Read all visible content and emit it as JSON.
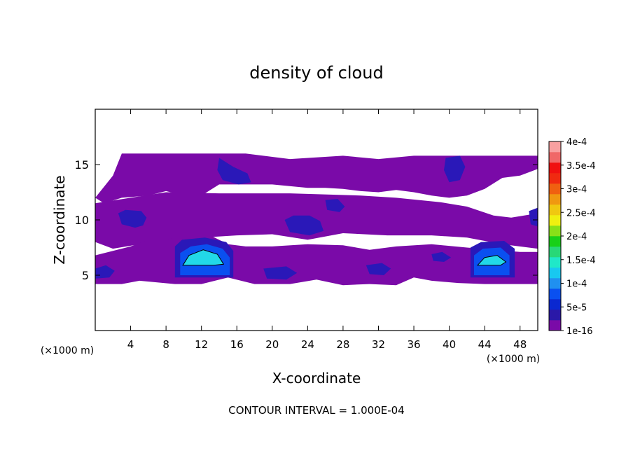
{
  "chart_data": {
    "type": "heatmap",
    "title": "density of cloud",
    "xlabel": "X-coordinate",
    "ylabel": "Z-coordinate",
    "x_unit": "(×1000 m)",
    "y_unit": "(×1000 m)",
    "footer": "CONTOUR INTERVAL = 1.000E-04",
    "xlim": [
      0,
      50
    ],
    "ylim": [
      0,
      20
    ],
    "x_ticks": [
      "4",
      "8",
      "12",
      "16",
      "20",
      "24",
      "28",
      "32",
      "36",
      "40",
      "44",
      "48"
    ],
    "x_tick_values": [
      4,
      8,
      12,
      16,
      20,
      24,
      28,
      32,
      36,
      40,
      44,
      48
    ],
    "y_ticks": [
      "5",
      "10",
      "15"
    ],
    "y_tick_values": [
      5,
      10,
      15
    ],
    "colorbar": {
      "labels": [
        "1e-16",
        "5e-5",
        "1e-4",
        "1.5e-4",
        "2e-4",
        "2.5e-4",
        "3e-4",
        "3.5e-4",
        "4e-4"
      ],
      "label_values": [
        1e-16,
        5e-05,
        0.0001,
        0.00015,
        0.0002,
        0.00025,
        0.0003,
        0.00035,
        0.0004
      ],
      "colors": [
        "#7a0aa8",
        "#2a18a8",
        "#0a28d0",
        "#0a50f0",
        "#2090f0",
        "#18c8f0",
        "#20e8c8",
        "#28d878",
        "#18d018",
        "#88e018",
        "#f0f010",
        "#f0c810",
        "#f09810",
        "#f06010",
        "#f02a10",
        "#f01010",
        "#f06868",
        "#f8a0a0"
      ]
    },
    "regions": [
      {
        "level": 1e-16,
        "polygon": [
          [
            0,
            12
          ],
          [
            2,
            14
          ],
          [
            3,
            16
          ],
          [
            17,
            16
          ],
          [
            22,
            15.5
          ],
          [
            28,
            15.8
          ],
          [
            32,
            15.5
          ],
          [
            36,
            15.8
          ],
          [
            44,
            15.8
          ],
          [
            50,
            15.8
          ],
          [
            50,
            14.6
          ],
          [
            48,
            14
          ],
          [
            46,
            13.8
          ],
          [
            44,
            12.8
          ],
          [
            42,
            12.2
          ],
          [
            40,
            12
          ],
          [
            38,
            12.2
          ],
          [
            36,
            12.5
          ],
          [
            34,
            12.7
          ],
          [
            32,
            12.5
          ],
          [
            30,
            12.6
          ],
          [
            28,
            12.8
          ],
          [
            26,
            12.9
          ],
          [
            24,
            12.9
          ],
          [
            20,
            13.2
          ],
          [
            14,
            13.2
          ],
          [
            12,
            12.2
          ],
          [
            10,
            12.2
          ],
          [
            8,
            12.6
          ],
          [
            6,
            12.2
          ],
          [
            3,
            12
          ],
          [
            1,
            11.5
          ]
        ]
      },
      {
        "level": 1e-16,
        "polygon": [
          [
            0,
            11.5
          ],
          [
            4,
            12
          ],
          [
            8,
            12.5
          ],
          [
            14,
            12.4
          ],
          [
            22,
            12.4
          ],
          [
            30,
            12.2
          ],
          [
            34,
            12
          ],
          [
            39,
            11.6
          ],
          [
            42,
            11.2
          ],
          [
            45,
            10.4
          ],
          [
            47,
            10.2
          ],
          [
            50,
            10.6
          ],
          [
            50,
            7.4
          ],
          [
            46,
            7.8
          ],
          [
            42,
            8.4
          ],
          [
            38,
            8.6
          ],
          [
            33,
            8.6
          ],
          [
            28,
            8.8
          ],
          [
            24,
            8.2
          ],
          [
            20,
            8.7
          ],
          [
            16,
            8.6
          ],
          [
            12,
            8.4
          ],
          [
            8,
            7.4
          ],
          [
            5,
            7.8
          ],
          [
            2,
            7.4
          ],
          [
            0,
            8
          ]
        ]
      },
      {
        "level": 1e-16,
        "polygon": [
          [
            0,
            6.8
          ],
          [
            2,
            7.2
          ],
          [
            4,
            7.6
          ],
          [
            6,
            8.2
          ],
          [
            8,
            8.2
          ],
          [
            10,
            8.6
          ],
          [
            13,
            8.6
          ],
          [
            15,
            7.8
          ],
          [
            17,
            7.6
          ],
          [
            20,
            7.6
          ],
          [
            24,
            7.8
          ],
          [
            28,
            7.7
          ],
          [
            31,
            7.3
          ],
          [
            34,
            7.6
          ],
          [
            38,
            7.8
          ],
          [
            42,
            7.5
          ],
          [
            45,
            7.3
          ],
          [
            48,
            7.1
          ],
          [
            50,
            7.1
          ],
          [
            50,
            4.2
          ],
          [
            47,
            4.2
          ],
          [
            44,
            4.2
          ],
          [
            41,
            4.3
          ],
          [
            38,
            4.5
          ],
          [
            36,
            4.8
          ],
          [
            34,
            4.1
          ],
          [
            31,
            4.2
          ],
          [
            28,
            4.1
          ],
          [
            25,
            4.6
          ],
          [
            22,
            4.2
          ],
          [
            18,
            4.2
          ],
          [
            15,
            4.8
          ],
          [
            12,
            4.2
          ],
          [
            9,
            4.2
          ],
          [
            5,
            4.5
          ],
          [
            3,
            4.2
          ],
          [
            0,
            4.2
          ]
        ]
      },
      {
        "level": 5e-05,
        "polygon": [
          [
            14,
            15.6
          ],
          [
            15.6,
            14.8
          ],
          [
            17.2,
            14.2
          ],
          [
            17.6,
            13.4
          ],
          [
            16.2,
            13.2
          ],
          [
            14.4,
            13.6
          ],
          [
            13.8,
            14.5
          ]
        ]
      },
      {
        "level": 5e-05,
        "polygon": [
          [
            39.6,
            15.6
          ],
          [
            41.2,
            15.8
          ],
          [
            41.8,
            14.8
          ],
          [
            41.2,
            13.6
          ],
          [
            40,
            13.4
          ],
          [
            39.4,
            14.5
          ]
        ]
      },
      {
        "level": 5e-05,
        "polygon": [
          [
            2.6,
            10.6
          ],
          [
            3.4,
            10.9
          ],
          [
            5.2,
            10.8
          ],
          [
            5.8,
            10.2
          ],
          [
            5.4,
            9.5
          ],
          [
            4.5,
            9.3
          ],
          [
            3,
            9.6
          ]
        ]
      },
      {
        "level": 5e-05,
        "polygon": [
          [
            21.4,
            10
          ],
          [
            22.4,
            10.4
          ],
          [
            24.2,
            10.4
          ],
          [
            25.4,
            9.9
          ],
          [
            25.8,
            9
          ],
          [
            24.2,
            8.6
          ],
          [
            22,
            8.9
          ]
        ]
      },
      {
        "level": 5e-05,
        "polygon": [
          [
            26,
            11.8
          ],
          [
            27.4,
            11.9
          ],
          [
            28.2,
            11.2
          ],
          [
            27.6,
            10.7
          ],
          [
            26.2,
            10.9
          ]
        ]
      },
      {
        "level": 5e-05,
        "polygon": [
          [
            38,
            6.9
          ],
          [
            39.2,
            7.1
          ],
          [
            40.2,
            6.6
          ],
          [
            39.4,
            6.2
          ],
          [
            38.2,
            6.3
          ]
        ]
      },
      {
        "level": 5e-05,
        "polygon": [
          [
            30.6,
            5.9
          ],
          [
            32.4,
            6.1
          ],
          [
            33.4,
            5.6
          ],
          [
            32.6,
            5
          ],
          [
            31,
            5.1
          ]
        ]
      },
      {
        "level": 5e-05,
        "polygon": [
          [
            19,
            5.6
          ],
          [
            21.6,
            5.8
          ],
          [
            22.8,
            5.2
          ],
          [
            21.6,
            4.6
          ],
          [
            19.4,
            4.7
          ]
        ]
      },
      {
        "level": 5e-05,
        "polygon": [
          [
            49,
            10.8
          ],
          [
            50,
            11.1
          ],
          [
            50,
            9.4
          ],
          [
            49.2,
            9.6
          ]
        ]
      },
      {
        "level": 5e-05,
        "polygon": [
          [
            0,
            5.6
          ],
          [
            1.2,
            5.9
          ],
          [
            2.2,
            5.4
          ],
          [
            1.6,
            4.8
          ],
          [
            0,
            4.7
          ]
        ]
      },
      {
        "level": 5e-05,
        "polygon": [
          [
            9,
            7.6
          ],
          [
            9.8,
            8.2
          ],
          [
            12.4,
            8.4
          ],
          [
            14.8,
            8
          ],
          [
            15.6,
            7.2
          ],
          [
            15.6,
            4.8
          ],
          [
            9,
            4.8
          ]
        ]
      },
      {
        "level": 5e-05,
        "polygon": [
          [
            42.4,
            7.5
          ],
          [
            43.6,
            8.0
          ],
          [
            46.2,
            8.1
          ],
          [
            47.4,
            7.4
          ],
          [
            47.4,
            4.8
          ],
          [
            42.4,
            4.8
          ]
        ]
      },
      {
        "level": 0.0001,
        "polygon": [
          [
            9.6,
            7.0
          ],
          [
            10.8,
            7.6
          ],
          [
            12.6,
            7.8
          ],
          [
            14.4,
            7.4
          ],
          [
            15.2,
            6.6
          ],
          [
            15.2,
            5.0
          ],
          [
            9.6,
            5.0
          ]
        ]
      },
      {
        "level": 0.0001,
        "polygon": [
          [
            42.8,
            6.8
          ],
          [
            43.8,
            7.4
          ],
          [
            45.8,
            7.5
          ],
          [
            46.8,
            6.8
          ],
          [
            46.8,
            5.0
          ],
          [
            42.8,
            5.0
          ]
        ]
      },
      {
        "level": 0.00015,
        "polygon": [
          [
            9.9,
            5.9
          ],
          [
            10.6,
            6.8
          ],
          [
            12.2,
            7.3
          ],
          [
            13.8,
            6.9
          ],
          [
            14.5,
            6.0
          ],
          [
            13.4,
            5.9
          ],
          [
            11.2,
            5.9
          ]
        ]
      },
      {
        "level": 0.00015,
        "polygon": [
          [
            43.2,
            5.9
          ],
          [
            44.0,
            6.6
          ],
          [
            45.4,
            6.8
          ],
          [
            46.4,
            6.2
          ],
          [
            45.8,
            5.9
          ],
          [
            44.2,
            5.9
          ]
        ]
      }
    ]
  }
}
